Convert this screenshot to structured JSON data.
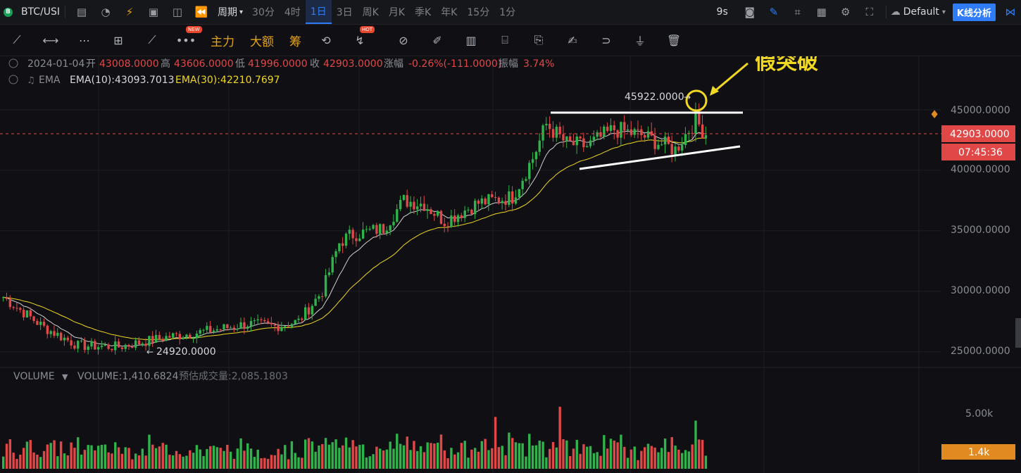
{
  "topbar": {
    "symbol": "BTC/USI",
    "period_label": "周期",
    "intervals": [
      "30分",
      "4时",
      "1日",
      "3日",
      "周K",
      "月K",
      "季K",
      "年K",
      "15分",
      "1分"
    ],
    "active_interval": "1日",
    "countdown_short": "9s",
    "theme": "Default",
    "analysis_button": "K线分析"
  },
  "toolbar2": {
    "labels": [
      "主力",
      "大额",
      "筹"
    ],
    "badge_new": "NEW",
    "badge_hot": "HOT"
  },
  "ohlc": {
    "date": "2024-01-04",
    "open_label": "开",
    "open": "43008.0000",
    "high_label": "高",
    "high": "43606.0000",
    "low_label": "低",
    "low": "41996.0000",
    "close_label": "收",
    "close": "42903.0000",
    "change_label": "涨幅",
    "change": "-0.26%(-111.0000)",
    "amp_label": "振幅",
    "amp": "3.74%"
  },
  "ema": {
    "label": "EMA",
    "ema10": "EMA(10):43093.7013",
    "ema30": "EMA(30):42210.7697"
  },
  "price_axis": {
    "ticks": [
      "45000.0000",
      "40000.0000",
      "35000.0000",
      "30000.0000",
      "25000.0000"
    ],
    "last_price": "42903.0000",
    "countdown": "07:45:36"
  },
  "annotations": {
    "false_breakout": "假突破",
    "high_marker": "45922.0000",
    "low_marker": "24920.0000"
  },
  "volume": {
    "label": "VOLUME",
    "value": "VOLUME:1,410.6824",
    "estimate": "预估成交量:2,085.1803",
    "tick": "5.00k",
    "last": "1.4k"
  },
  "chart_data": {
    "type": "candlestick",
    "x": [
      "2024-01-04"
    ],
    "ylim": [
      22000,
      48000
    ],
    "yticks": [
      45000,
      40000,
      35000,
      30000,
      25000
    ],
    "last_close": 42903,
    "period_high": 45922,
    "period_low": 24920,
    "series": [
      {
        "name": "EMA(10)",
        "last": 43093.7013,
        "color": "#d0d0d0"
      },
      {
        "name": "EMA(30)",
        "last": 42210.7697,
        "color": "#f0d722"
      }
    ],
    "colors": {
      "up": "#2fb34a",
      "down": "#e04848"
    },
    "volume_max_tick": 5000,
    "volume_last": 1410.6824,
    "volume_estimate": 2085.1803
  }
}
